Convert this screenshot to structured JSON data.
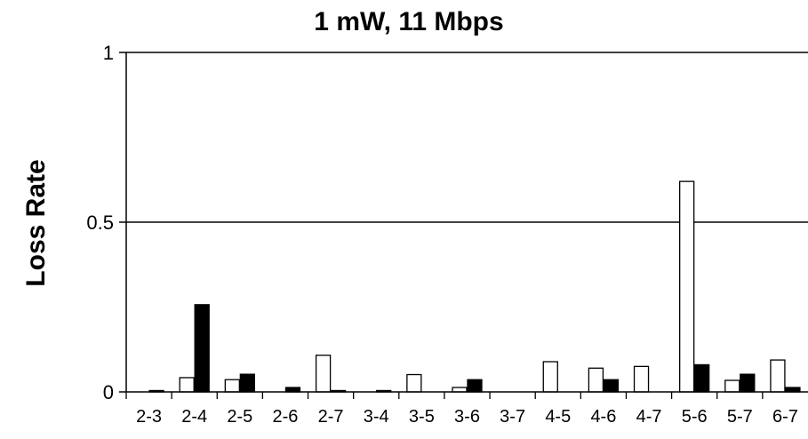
{
  "chart_data": {
    "type": "bar",
    "title": "1 mW, 11 Mbps",
    "xlabel": "",
    "ylabel": "Loss Rate",
    "ylim": [
      0,
      1
    ],
    "yticks": [
      {
        "value": 0,
        "label": "0"
      },
      {
        "value": 0.5,
        "label": "0.5"
      },
      {
        "value": 1,
        "label": "1"
      }
    ],
    "grid": "horizontal",
    "categories": [
      "2-3",
      "2-4",
      "2-5",
      "2-6",
      "2-7",
      "3-4",
      "3-5",
      "3-6",
      "3-7",
      "4-5",
      "4-6",
      "4-7",
      "5-6",
      "5-7",
      "6-7"
    ],
    "series": [
      {
        "fill": "#ffffff",
        "values": [
          0,
          0.042,
          0.036,
          0,
          0.108,
          0,
          0.051,
          0.013,
          0,
          0.089,
          0.07,
          0.075,
          0.62,
          0.034,
          0.094
        ]
      },
      {
        "fill": "#000000",
        "values": [
          0.004,
          0.257,
          0.052,
          0.013,
          0.004,
          0.004,
          0,
          0.036,
          0,
          0,
          0.036,
          0,
          0.08,
          0.052,
          0.013
        ]
      }
    ]
  }
}
